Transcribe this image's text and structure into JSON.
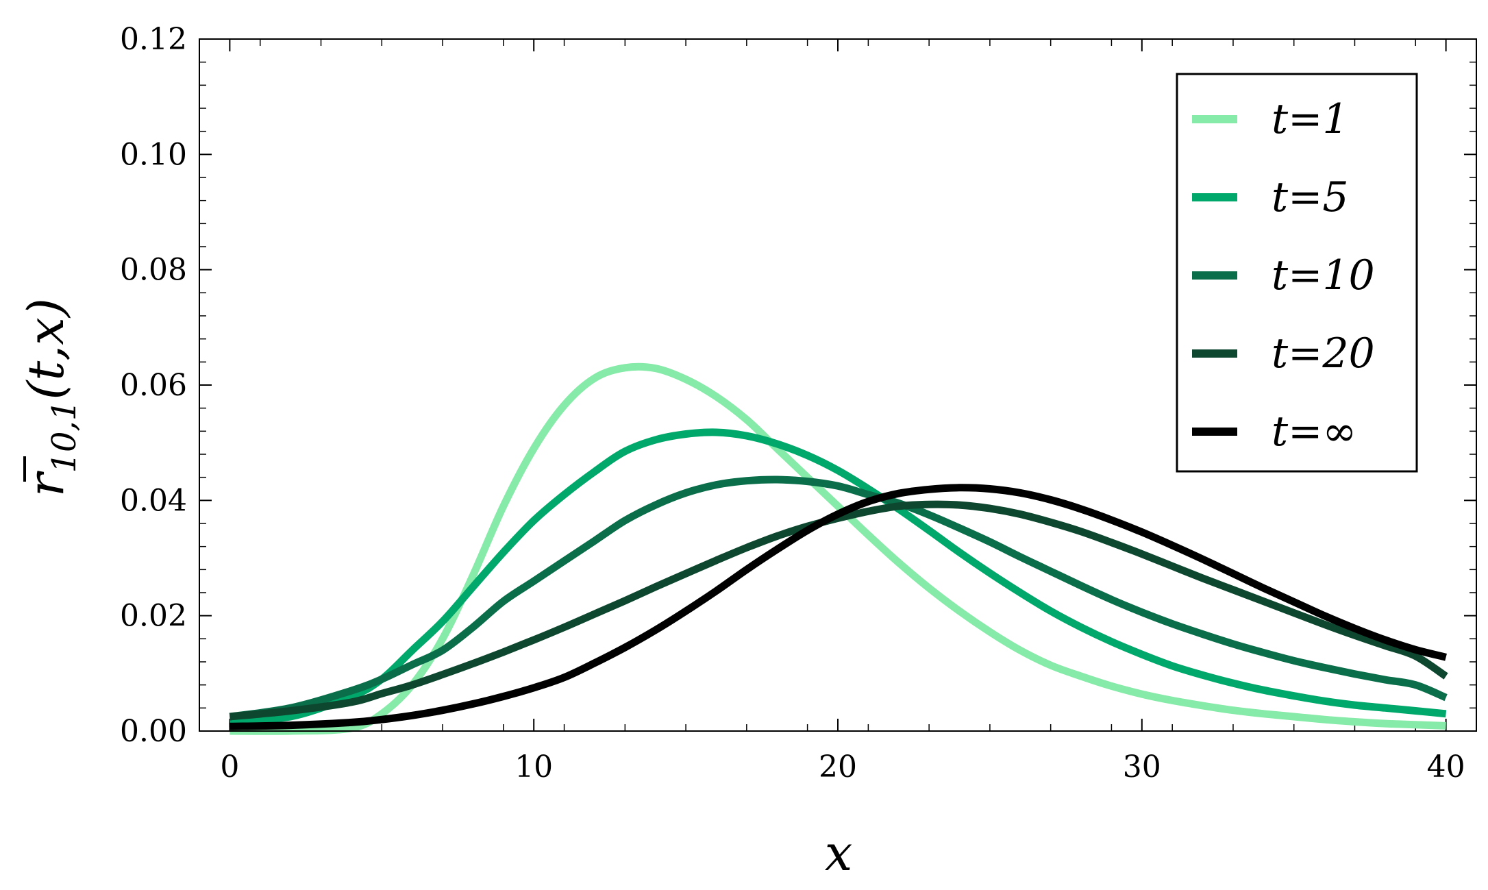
{
  "chart_data": {
    "type": "line",
    "title": "",
    "xlabel": "x",
    "ylabel": {
      "base": "r",
      "subscript": "10,1",
      "args": "(t,x)"
    },
    "xlim": [
      -1,
      41
    ],
    "ylim": [
      0,
      0.12
    ],
    "x_ticks": [
      0,
      10,
      20,
      30,
      40
    ],
    "x_tick_labels": [
      "0",
      "10",
      "20",
      "30",
      "40"
    ],
    "y_ticks": [
      0,
      0.02,
      0.04,
      0.06,
      0.08,
      0.1,
      0.12
    ],
    "y_tick_labels": [
      "0.00",
      "0.02",
      "0.04",
      "0.06",
      "0.08",
      "0.10",
      "0.12"
    ],
    "grid": false,
    "legend_position": "top-right",
    "x": [
      0,
      2,
      4,
      5,
      6,
      7,
      8,
      9,
      10,
      11,
      12,
      13,
      14,
      15,
      16,
      17,
      18,
      19,
      20,
      21,
      22,
      23,
      24,
      25,
      26,
      27,
      28,
      29,
      30,
      31,
      32,
      33,
      34,
      35,
      36,
      37,
      38,
      39,
      40
    ],
    "series": [
      {
        "name": "t=1",
        "color": "#86eaa8",
        "values": [
          0.0,
          0.0,
          0.0005,
          0.003,
          0.008,
          0.016,
          0.027,
          0.039,
          0.049,
          0.0565,
          0.0612,
          0.063,
          0.0629,
          0.061,
          0.058,
          0.054,
          0.049,
          0.044,
          0.039,
          0.034,
          0.0292,
          0.0248,
          0.0208,
          0.0172,
          0.014,
          0.0114,
          0.0095,
          0.0078,
          0.0064,
          0.0053,
          0.0044,
          0.0036,
          0.003,
          0.0025,
          0.002,
          0.0016,
          0.0013,
          0.0011,
          0.0009
        ]
      },
      {
        "name": "t=5",
        "color": "#00a86b",
        "values": [
          0.002,
          0.0025,
          0.006,
          0.009,
          0.014,
          0.019,
          0.025,
          0.031,
          0.0365,
          0.041,
          0.045,
          0.0485,
          0.0505,
          0.0515,
          0.0518,
          0.0512,
          0.0498,
          0.0478,
          0.0452,
          0.042,
          0.0385,
          0.0348,
          0.031,
          0.0274,
          0.024,
          0.0208,
          0.018,
          0.0155,
          0.0133,
          0.0113,
          0.0097,
          0.0083,
          0.0071,
          0.0061,
          0.0052,
          0.0045,
          0.004,
          0.0035,
          0.003
        ]
      },
      {
        "name": "t=10",
        "color": "#0a6e4b",
        "values": [
          0.0025,
          0.004,
          0.007,
          0.009,
          0.0115,
          0.014,
          0.018,
          0.0225,
          0.026,
          0.0295,
          0.033,
          0.0365,
          0.0392,
          0.0413,
          0.0427,
          0.0434,
          0.0436,
          0.0433,
          0.0425,
          0.041,
          0.0395,
          0.0375,
          0.0352,
          0.0328,
          0.0302,
          0.0277,
          0.0252,
          0.0228,
          0.0206,
          0.0186,
          0.0168,
          0.0151,
          0.0136,
          0.0122,
          0.011,
          0.0099,
          0.0089,
          0.008,
          0.0058
        ]
      },
      {
        "name": "t=20",
        "color": "#0e4730",
        "values": [
          0.0025,
          0.0035,
          0.005,
          0.0065,
          0.008,
          0.0098,
          0.0117,
          0.0137,
          0.0158,
          0.018,
          0.0203,
          0.0226,
          0.025,
          0.0273,
          0.0296,
          0.0318,
          0.0338,
          0.0355,
          0.0369,
          0.0381,
          0.039,
          0.0393,
          0.0392,
          0.0386,
          0.0376,
          0.0362,
          0.0346,
          0.0327,
          0.0307,
          0.0286,
          0.0265,
          0.0245,
          0.0225,
          0.0205,
          0.0185,
          0.0166,
          0.0148,
          0.013,
          0.0095
        ]
      },
      {
        "name": "t=∞",
        "color": "#000000",
        "values": [
          0.0008,
          0.001,
          0.0015,
          0.002,
          0.0027,
          0.0036,
          0.0047,
          0.006,
          0.0075,
          0.0093,
          0.0118,
          0.0145,
          0.0175,
          0.0208,
          0.0243,
          0.028,
          0.0315,
          0.0348,
          0.0376,
          0.0398,
          0.0412,
          0.0419,
          0.0422,
          0.042,
          0.0413,
          0.0401,
          0.0385,
          0.0366,
          0.0345,
          0.0322,
          0.0298,
          0.0273,
          0.0248,
          0.0224,
          0.02,
          0.0178,
          0.0158,
          0.0141,
          0.0128
        ]
      }
    ]
  }
}
